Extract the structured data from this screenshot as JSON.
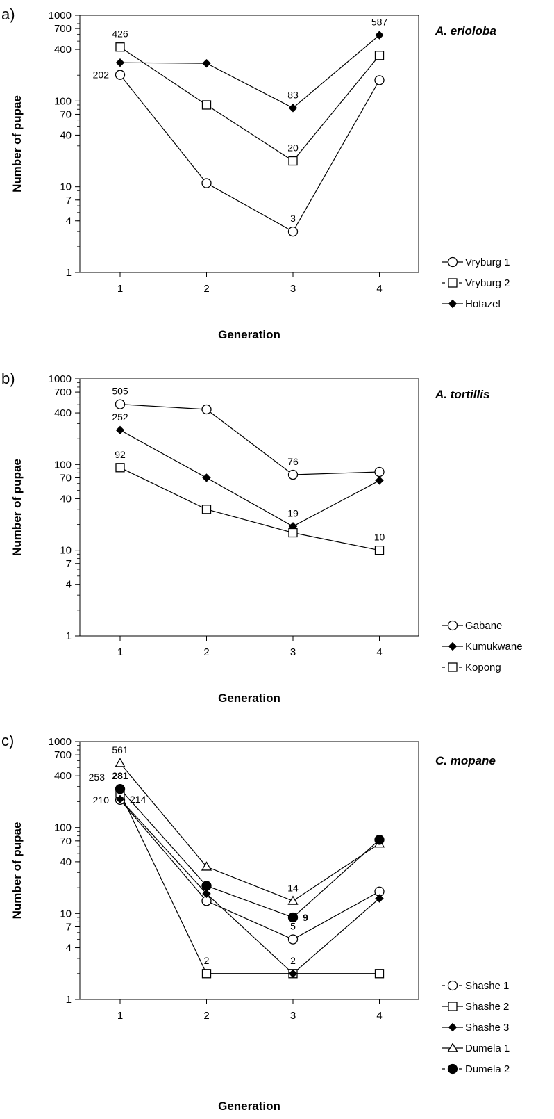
{
  "chart_data": [
    {
      "type": "line",
      "panel_label": "a)",
      "title": "A. erioloba",
      "xlabel": "Generation",
      "ylabel": "Number of pupae",
      "y_scale": "log",
      "ylim": [
        1,
        1000
      ],
      "y_ticks": [
        "1",
        "4",
        "7",
        "10",
        "40",
        "70",
        "100",
        "400",
        "700",
        "1000"
      ],
      "x": [
        1,
        2,
        3,
        4
      ],
      "x_ticks": [
        "1",
        "2",
        "3",
        "4"
      ],
      "series": [
        {
          "name": "Vryburg 1",
          "marker": "circle-open",
          "line": "solid",
          "legend_line": "solid",
          "values": [
            202,
            11,
            3,
            175
          ]
        },
        {
          "name": "Vryburg 2",
          "marker": "square-open",
          "line": "solid",
          "legend_line": "dashed",
          "values": [
            426,
            90,
            20,
            340
          ]
        },
        {
          "name": "Hotazel",
          "marker": "diamond-filled",
          "line": "solid",
          "legend_line": "solid",
          "values": [
            280,
            275,
            83,
            587
          ]
        }
      ],
      "annotations": [
        {
          "text": "426",
          "series": 1,
          "index": 0,
          "pos": "above"
        },
        {
          "text": "202",
          "series": 0,
          "index": 0,
          "pos": "left"
        },
        {
          "text": "83",
          "series": 2,
          "index": 2,
          "pos": "above"
        },
        {
          "text": "20",
          "series": 1,
          "index": 2,
          "pos": "above"
        },
        {
          "text": "3",
          "series": 0,
          "index": 2,
          "pos": "above"
        },
        {
          "text": "587",
          "series": 2,
          "index": 3,
          "pos": "above"
        }
      ]
    },
    {
      "type": "line",
      "panel_label": "b)",
      "title": "A. tortillis",
      "xlabel": "Generation",
      "ylabel": "Number of pupae",
      "y_scale": "log",
      "ylim": [
        1,
        1000
      ],
      "y_ticks": [
        "1",
        "4",
        "7",
        "10",
        "40",
        "70",
        "100",
        "400",
        "700",
        "1000"
      ],
      "x": [
        1,
        2,
        3,
        4
      ],
      "x_ticks": [
        "1",
        "2",
        "3",
        "4"
      ],
      "series": [
        {
          "name": "Gabane",
          "marker": "circle-open",
          "line": "solid",
          "legend_line": "solid",
          "values": [
            505,
            440,
            76,
            82
          ]
        },
        {
          "name": "Kumukwane",
          "marker": "diamond-filled",
          "line": "solid",
          "legend_line": "solid",
          "values": [
            252,
            70,
            19,
            65
          ]
        },
        {
          "name": "Kopong",
          "marker": "square-open",
          "line": "solid",
          "legend_line": "dashed",
          "values": [
            92,
            30,
            16,
            10
          ]
        }
      ],
      "annotations": [
        {
          "text": "505",
          "series": 0,
          "index": 0,
          "pos": "above"
        },
        {
          "text": "252",
          "series": 1,
          "index": 0,
          "pos": "above"
        },
        {
          "text": "92",
          "series": 2,
          "index": 0,
          "pos": "above"
        },
        {
          "text": "76",
          "series": 0,
          "index": 2,
          "pos": "above"
        },
        {
          "text": "19",
          "series": 1,
          "index": 2,
          "pos": "above"
        },
        {
          "text": "10",
          "series": 2,
          "index": 3,
          "pos": "above"
        }
      ]
    },
    {
      "type": "line",
      "panel_label": "c)",
      "title": "C. mopane",
      "xlabel": "Generation",
      "ylabel": "Number of pupae",
      "y_scale": "log",
      "ylim": [
        1,
        1000
      ],
      "y_ticks": [
        "1",
        "4",
        "7",
        "10",
        "40",
        "70",
        "100",
        "400",
        "700",
        "1000"
      ],
      "x": [
        1,
        2,
        3,
        4
      ],
      "x_ticks": [
        "1",
        "2",
        "3",
        "4"
      ],
      "series": [
        {
          "name": "Shashe 1",
          "marker": "circle-open",
          "line": "solid",
          "legend_line": "dashed",
          "values": [
            210,
            14,
            5,
            18
          ]
        },
        {
          "name": "Shashe 2",
          "marker": "square-open",
          "line": "solid",
          "legend_line": "solid",
          "values": [
            253,
            2,
            2,
            2
          ]
        },
        {
          "name": "Shashe 3",
          "marker": "diamond-filled",
          "line": "solid",
          "legend_line": "solid",
          "values": [
            214,
            17,
            2,
            15
          ]
        },
        {
          "name": "Dumela 1",
          "marker": "triangle-open",
          "line": "solid",
          "legend_line": "solid",
          "values": [
            561,
            35,
            14,
            65
          ]
        },
        {
          "name": "Dumela 2",
          "marker": "circle-filled",
          "line": "solid",
          "legend_line": "dashed",
          "values": [
            281,
            21,
            9,
            72
          ]
        }
      ],
      "annotations": [
        {
          "text": "561",
          "series": 3,
          "index": 0,
          "pos": "above"
        },
        {
          "text": "281",
          "series": 4,
          "index": 0,
          "pos": "above",
          "bold": true
        },
        {
          "text": "253",
          "series": 1,
          "index": 0,
          "pos": "upper-left"
        },
        {
          "text": "210",
          "series": 0,
          "index": 0,
          "pos": "left"
        },
        {
          "text": "214",
          "series": 2,
          "index": 0,
          "pos": "right"
        },
        {
          "text": "2",
          "series": 1,
          "index": 1,
          "pos": "above"
        },
        {
          "text": "14",
          "series": 3,
          "index": 2,
          "pos": "above"
        },
        {
          "text": "9",
          "series": 4,
          "index": 2,
          "pos": "right",
          "bold": true
        },
        {
          "text": "5",
          "series": 0,
          "index": 2,
          "pos": "above"
        },
        {
          "text": "2",
          "series": 1,
          "index": 2,
          "pos": "above"
        }
      ]
    }
  ]
}
